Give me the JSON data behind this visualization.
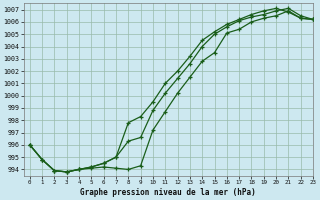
{
  "title": "Graphe pression niveau de la mer (hPa)",
  "bg_color": "#cde8f0",
  "grid_color": "#99bbaa",
  "line_color": "#1a5e1a",
  "ylim": [
    993.5,
    1007.5
  ],
  "xlim": [
    -0.5,
    23
  ],
  "yticks": [
    994,
    995,
    996,
    997,
    998,
    999,
    1000,
    1001,
    1002,
    1003,
    1004,
    1005,
    1006,
    1007
  ],
  "xticks": [
    0,
    1,
    2,
    3,
    4,
    5,
    6,
    7,
    8,
    9,
    10,
    11,
    12,
    13,
    14,
    15,
    16,
    17,
    18,
    19,
    20,
    21,
    22,
    23
  ],
  "series1_x": [
    0,
    1,
    2,
    3,
    4,
    5,
    6,
    7,
    8,
    9,
    10,
    11,
    12,
    13,
    14,
    15,
    16,
    17,
    18,
    19,
    20,
    21,
    22,
    23
  ],
  "series1_y": [
    996.0,
    994.8,
    993.9,
    993.8,
    994.0,
    994.1,
    994.2,
    994.1,
    994.0,
    994.3,
    997.2,
    998.7,
    1000.2,
    1001.5,
    1002.8,
    1003.5,
    1005.1,
    1005.4,
    1006.0,
    1006.3,
    1006.5,
    1006.9,
    1006.3,
    1006.2
  ],
  "series2_x": [
    0,
    1,
    2,
    3,
    4,
    5,
    6,
    7,
    8,
    9,
    10,
    11,
    12,
    13,
    14,
    15,
    16,
    17,
    18,
    19,
    20,
    21,
    22,
    23
  ],
  "series2_y": [
    996.0,
    994.8,
    993.9,
    993.8,
    994.0,
    994.2,
    994.5,
    995.0,
    997.8,
    998.3,
    999.5,
    1001.0,
    1002.0,
    1003.2,
    1004.5,
    1005.2,
    1005.8,
    1006.2,
    1006.6,
    1006.9,
    1007.1,
    1006.8,
    1006.3,
    1006.2
  ],
  "series3_x": [
    0,
    1,
    2,
    3,
    4,
    5,
    6,
    7,
    8,
    9,
    10,
    11,
    12,
    13,
    14,
    15,
    16,
    17,
    18,
    19,
    20,
    21,
    22,
    23
  ],
  "series3_y": [
    996.0,
    994.8,
    993.9,
    993.8,
    994.0,
    994.2,
    994.5,
    995.0,
    996.3,
    996.6,
    998.8,
    1000.2,
    1001.4,
    1002.6,
    1004.0,
    1005.0,
    1005.6,
    1006.1,
    1006.4,
    1006.6,
    1006.9,
    1007.1,
    1006.5,
    1006.2
  ]
}
